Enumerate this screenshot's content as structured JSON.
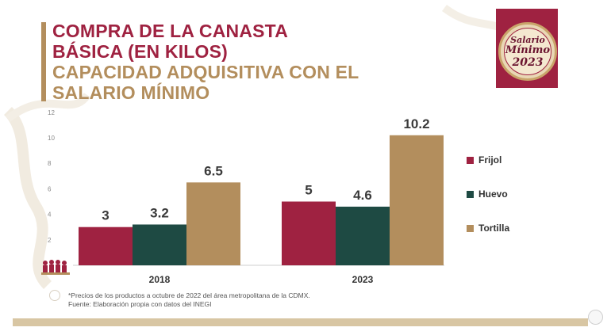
{
  "title": {
    "line1": "COMPRA DE LA CANASTA",
    "line2": "BÁSICA (EN KILOS)",
    "line3": "CAPACIDAD ADQUISITIVA CON EL",
    "line4": "SALARIO MÍNIMO"
  },
  "badge": {
    "line1": "Salario",
    "line2": "Mínimo",
    "line3": "2023"
  },
  "chart_data": {
    "type": "bar",
    "categories": [
      "2018",
      "2023"
    ],
    "series": [
      {
        "name": "Frijol",
        "values": [
          3,
          5
        ],
        "color": "#9f2241"
      },
      {
        "name": "Huevo",
        "values": [
          3.2,
          4.6
        ],
        "color": "#1e4a43"
      },
      {
        "name": "Tortilla",
        "values": [
          6.5,
          10.2
        ],
        "color": "#b38e5d"
      }
    ],
    "value_labels": [
      [
        "3",
        "5"
      ],
      [
        "3.2",
        "4.6"
      ],
      [
        "6.5",
        "10.2"
      ]
    ],
    "yticks": [
      "2",
      "4",
      "6",
      "8",
      "10",
      "12"
    ],
    "ylim": [
      0,
      12
    ],
    "grid": false,
    "legend": "right"
  },
  "notes": {
    "line1": "*Precios de los productos a octubre de 2022 del área metropolitana de la CDMX.",
    "line2": "Fuente: Elaboración propia con datos del INEGI"
  },
  "colors": {
    "guinda": "#9f2241",
    "verde": "#1e4a43",
    "dorado": "#b38e5d",
    "footer": "#d8c6a3"
  }
}
